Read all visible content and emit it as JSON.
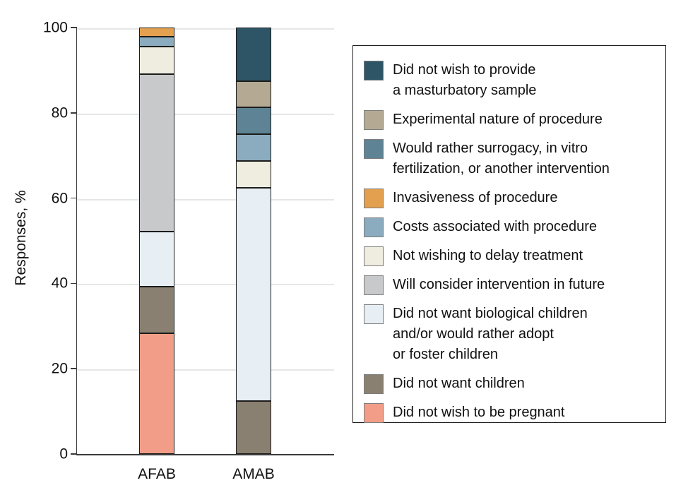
{
  "figure": {
    "background": "#ffffff",
    "axis_color": "#3a3a3a",
    "gridline_color": "#e5e6e6",
    "segment_border_color": "#1c1c1c",
    "text_color": "#111111"
  },
  "chart_data": {
    "type": "bar",
    "variant": "stacked-percentage",
    "title": "",
    "xlabel": "",
    "ylabel": "Responses, %",
    "ylim": [
      0,
      100
    ],
    "yticks": [
      0,
      20,
      40,
      60,
      80,
      100
    ],
    "grid": "horizontal",
    "legend_position": "right",
    "categories": [
      "AFAB",
      "AMAB"
    ],
    "series": [
      {
        "name": "Did not wish to be pregnant",
        "color": "#f19d88",
        "values": [
          28.3,
          0
        ]
      },
      {
        "name": "Did not want children",
        "color": "#8a8071",
        "values": [
          10.9,
          12.5
        ]
      },
      {
        "name": "Did not want biological children and/or would rather adopt or foster children",
        "color": "#e7eff4",
        "values": [
          13.0,
          50.0
        ]
      },
      {
        "name": "Will consider intervention in future",
        "color": "#c8c9cb",
        "values": [
          37.0,
          0
        ]
      },
      {
        "name": "Not wishing to delay treatment",
        "color": "#eeede0",
        "values": [
          6.5,
          6.25
        ]
      },
      {
        "name": "Costs associated with procedure",
        "color": "#8aacbe",
        "values": [
          2.2,
          6.25
        ]
      },
      {
        "name": "Invasiveness of procedure",
        "color": "#e3a04f",
        "values": [
          2.2,
          0
        ]
      },
      {
        "name": "Would rather surrogacy, in vitro fertilization, or another intervention",
        "color": "#5e8394",
        "values": [
          0,
          6.25
        ]
      },
      {
        "name": "Experimental nature of procedure",
        "color": "#b4aa94",
        "values": [
          0,
          6.25
        ]
      },
      {
        "name": "Did not wish to provide a masturbatory sample",
        "color": "#2d5565",
        "values": [
          0,
          12.5
        ]
      }
    ]
  },
  "legend": {
    "items": [
      {
        "lines": [
          "Did not wish to provide",
          "a masturbatory sample"
        ]
      },
      {
        "lines": [
          "Experimental nature of procedure"
        ]
      },
      {
        "lines": [
          "Would rather surrogacy, in vitro",
          "fertilization, or another intervention"
        ]
      },
      {
        "lines": [
          "Invasiveness of procedure"
        ]
      },
      {
        "lines": [
          "Costs associated with procedure"
        ]
      },
      {
        "lines": [
          "Not wishing to delay treatment"
        ]
      },
      {
        "lines": [
          "Will consider intervention in future"
        ]
      },
      {
        "lines": [
          "Did not want biological children",
          "and/or would rather adopt",
          "or foster children"
        ]
      },
      {
        "lines": [
          "Did not want children"
        ]
      },
      {
        "lines": [
          "Did not wish to be pregnant"
        ]
      }
    ]
  }
}
